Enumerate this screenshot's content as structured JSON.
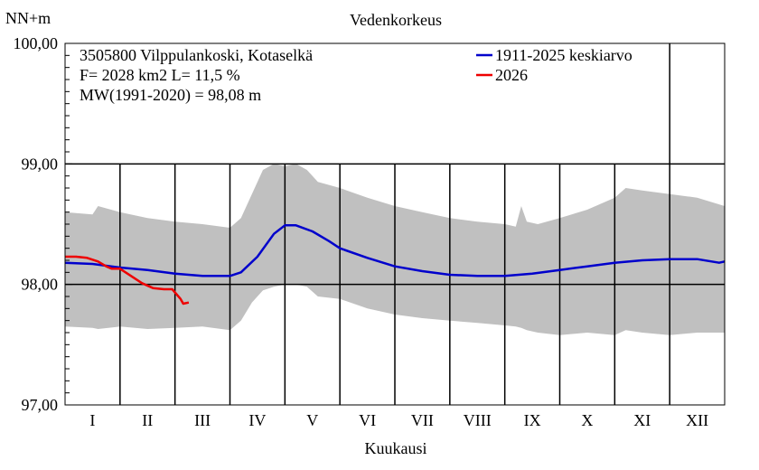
{
  "chart_data": {
    "type": "line",
    "title": "Vedenkorkeus",
    "ylabel": "NN+m",
    "xlabel": "Kuukausi",
    "ylim": [
      97.0,
      100.0
    ],
    "y_ticks": [
      "97,00",
      "98,00",
      "99,00",
      "100,00"
    ],
    "y_tick_values": [
      97.0,
      98.0,
      99.0,
      100.0
    ],
    "categories": [
      "I",
      "II",
      "III",
      "IV",
      "V",
      "VI",
      "VII",
      "VIII",
      "IX",
      "X",
      "XI",
      "XII"
    ],
    "info": {
      "station": "3505800 Vilppulankoski, Kotaselkä",
      "area": "F=   2028 km2 L=  11,5 %",
      "mean": "MW(1991-2020) = 98,08 m"
    },
    "colors": {
      "mean": "#0000cc",
      "current": "#ee0000",
      "band": "#c0c0c0",
      "grid": "#000000"
    },
    "series": [
      {
        "name": "1911-2025 keskiarvo",
        "x": [
          0,
          0.5,
          1.0,
          1.5,
          2.0,
          2.5,
          3.0,
          3.2,
          3.5,
          3.8,
          4.0,
          4.2,
          4.5,
          4.8,
          5.0,
          5.5,
          6.0,
          6.5,
          7.0,
          7.5,
          8.0,
          8.5,
          9.0,
          9.5,
          10.0,
          10.5,
          11.0,
          11.5,
          11.9,
          12.0
        ],
        "values": [
          98.18,
          98.17,
          98.14,
          98.12,
          98.09,
          98.07,
          98.07,
          98.1,
          98.23,
          98.42,
          98.49,
          98.49,
          98.44,
          98.36,
          98.3,
          98.22,
          98.15,
          98.11,
          98.08,
          98.07,
          98.07,
          98.09,
          98.12,
          98.15,
          98.18,
          98.2,
          98.21,
          98.21,
          98.18,
          98.19
        ]
      },
      {
        "name": "2026",
        "x": [
          0,
          0.2,
          0.4,
          0.6,
          0.75,
          0.85,
          1.0,
          1.2,
          1.4,
          1.6,
          1.8,
          1.95,
          2.1,
          2.15,
          2.25
        ],
        "values": [
          98.23,
          98.23,
          98.22,
          98.19,
          98.15,
          98.13,
          98.13,
          98.07,
          98.01,
          97.97,
          97.96,
          97.96,
          97.88,
          97.84,
          97.85
        ]
      }
    ],
    "band": {
      "name": "min-max",
      "x": [
        0,
        0.5,
        0.6,
        1.0,
        1.5,
        2.0,
        2.5,
        3.0,
        3.2,
        3.4,
        3.6,
        3.8,
        4.0,
        4.2,
        4.4,
        4.6,
        5.0,
        5.5,
        6.0,
        6.5,
        7.0,
        7.5,
        8.0,
        8.2,
        8.3,
        8.4,
        8.6,
        9.0,
        9.5,
        10.0,
        10.2,
        10.5,
        11.0,
        11.5,
        12.0
      ],
      "upper": [
        98.6,
        98.58,
        98.65,
        98.6,
        98.55,
        98.52,
        98.5,
        98.47,
        98.55,
        98.75,
        98.95,
        99.0,
        98.98,
        99.0,
        98.95,
        98.85,
        98.8,
        98.72,
        98.65,
        98.6,
        98.55,
        98.52,
        98.5,
        98.48,
        98.65,
        98.52,
        98.5,
        98.55,
        98.62,
        98.72,
        98.8,
        98.78,
        98.75,
        98.72,
        98.65
      ],
      "lower": [
        97.65,
        97.64,
        97.63,
        97.65,
        97.63,
        97.64,
        97.65,
        97.62,
        97.7,
        97.85,
        97.95,
        97.98,
        98.0,
        98.0,
        97.98,
        97.9,
        97.88,
        97.8,
        97.75,
        97.72,
        97.7,
        97.68,
        97.66,
        97.65,
        97.64,
        97.62,
        97.6,
        97.58,
        97.6,
        97.58,
        97.62,
        97.6,
        97.58,
        97.6,
        97.6
      ]
    }
  }
}
